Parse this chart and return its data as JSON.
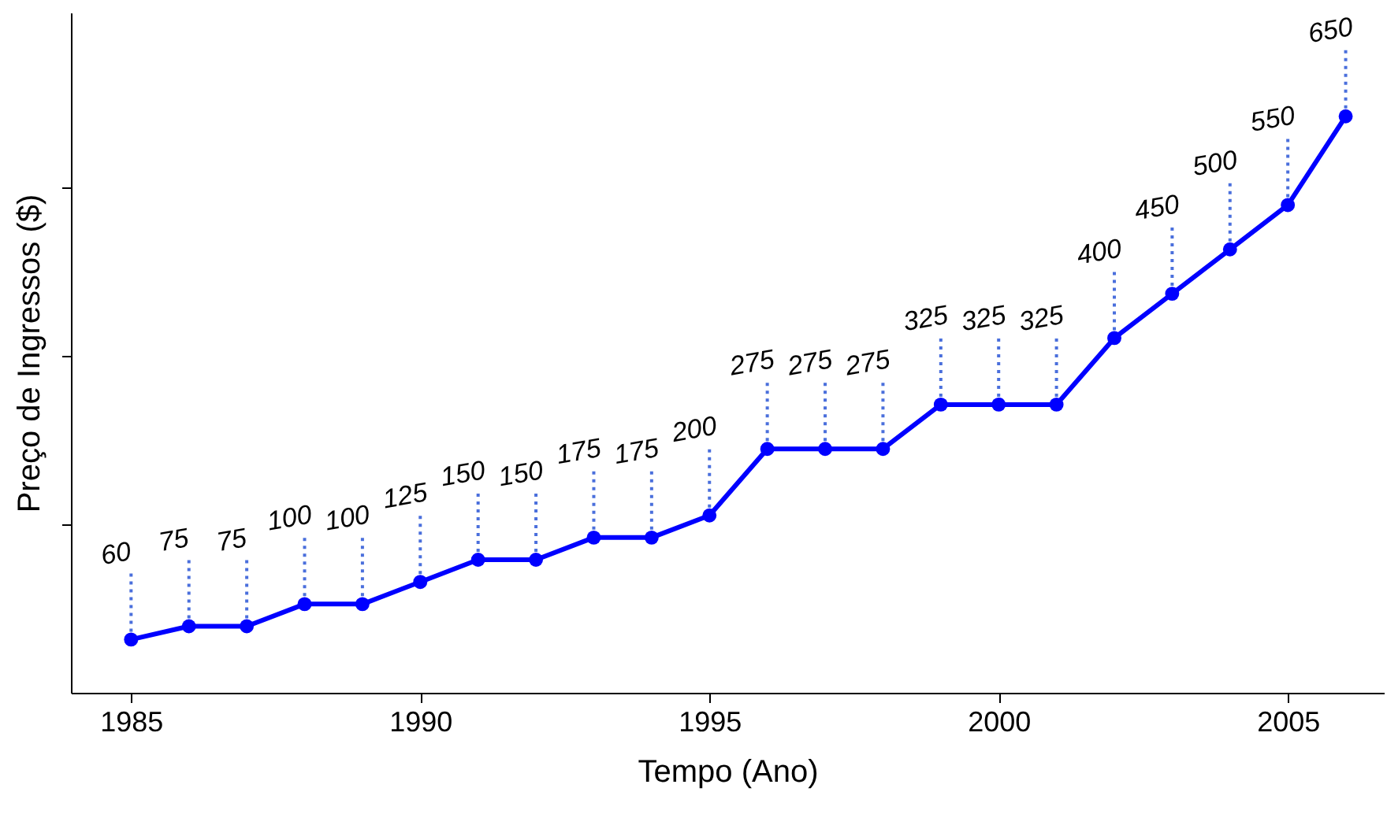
{
  "chart_data": {
    "type": "line",
    "xlabel": "Tempo (Ano)",
    "ylabel": "Preço de Ingressos ($)",
    "x": [
      1985,
      1986,
      1987,
      1988,
      1989,
      1990,
      1991,
      1992,
      1993,
      1994,
      1995,
      1996,
      1997,
      1998,
      1999,
      2000,
      2001,
      2002,
      2003,
      2004,
      2005,
      2006
    ],
    "series": [
      {
        "color": "#0000ff",
        "values": [
          60,
          75,
          75,
          100,
          100,
          125,
          150,
          150,
          175,
          175,
          200,
          275,
          275,
          275,
          325,
          325,
          325,
          400,
          450,
          500,
          550,
          650
        ]
      }
    ],
    "xlim": [
      1983.96,
      2006.66
    ],
    "xticks": [
      1985,
      1990,
      1995,
      2000,
      2005
    ],
    "ylim": [
      0,
      767
    ],
    "yticks": [
      {
        "value": 190,
        "label": null
      },
      {
        "value": 380,
        "label": null
      },
      {
        "value": 570,
        "label": null
      }
    ],
    "tick_labels": "x",
    "data_labels": true,
    "marker": "circle",
    "line_style": "solid",
    "grid": false
  }
}
